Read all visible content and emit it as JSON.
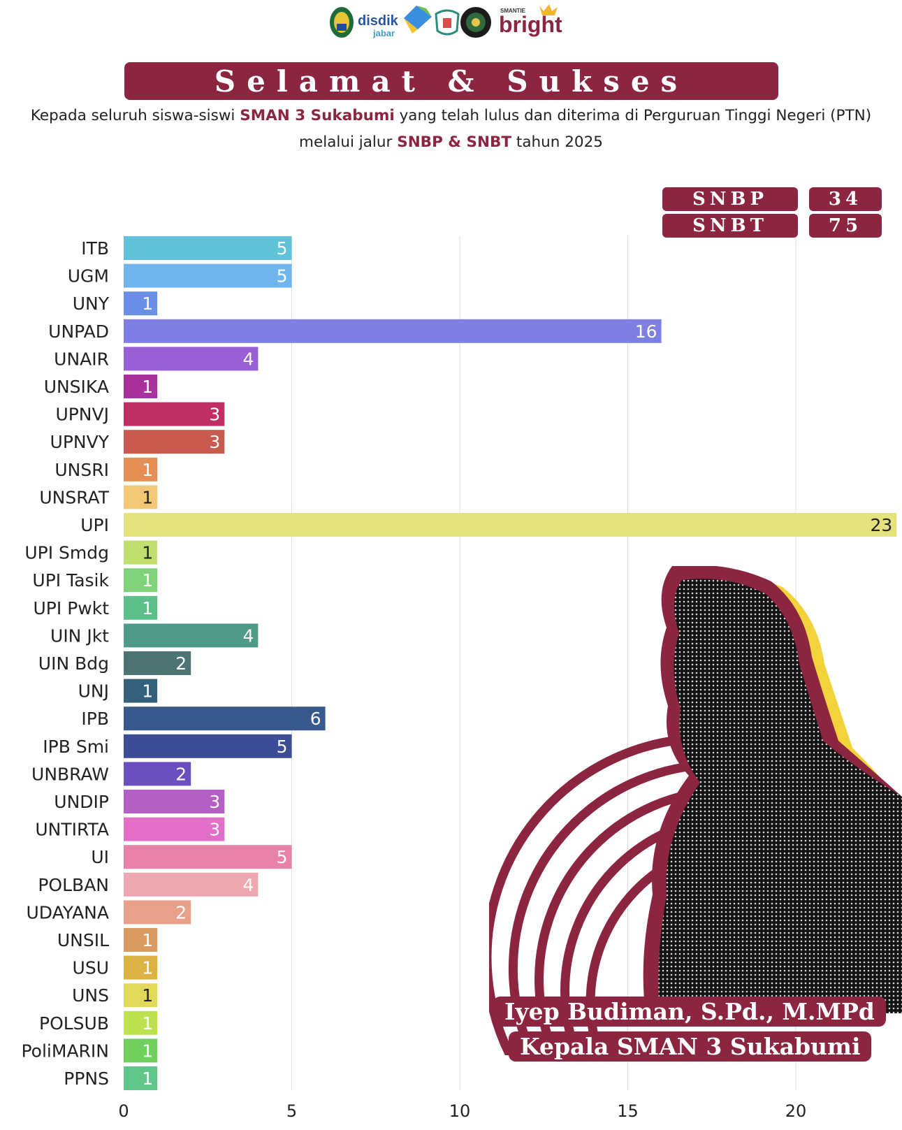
{
  "header": {
    "logos": [
      "disdik-jabar-logo",
      "partner-logo",
      "school-logo",
      "police-logo",
      "smantie-bright-logo"
    ],
    "logo_disdik_main": "disdik",
    "logo_disdik_sub": "jabar",
    "logo_bright_top": "SMANTIE",
    "logo_bright_main": "bright",
    "banner_title": "Selamat & Sukses",
    "subtitle_line1_a": "Kepada seluruh siswa-siswi ",
    "subtitle_line1_b": "SMAN 3 Sukabumi",
    "subtitle_line1_c": " yang telah lulus dan diterima di Perguruan Tinggi Negeri (PTN)",
    "subtitle_line2_a": "melalui jalur ",
    "subtitle_line2_b": "SNBP & SNBT",
    "subtitle_line2_c": " tahun 2025"
  },
  "totals": {
    "snbp_label": "SNBP",
    "snbp_value": "34",
    "snbt_label": "SNBT",
    "snbt_value": "75"
  },
  "caption": {
    "name": "Iyep Budiman, S.Pd., M.MPd",
    "role": "Kepala SMAN 3 Sukabumi"
  },
  "colors": {
    "brand": "#8b2540",
    "accent_yellow": "#f2d33c",
    "bars": [
      "#5fc4da",
      "#6fb5ee",
      "#6a8fe6",
      "#7d7fe2",
      "#9a5fd4",
      "#a9309e",
      "#c02e63",
      "#cb5a4e",
      "#e58f55",
      "#f2c877",
      "#e4e17f",
      "#bfe06f",
      "#7fd27a",
      "#5cbf89",
      "#4f9a88",
      "#4d7374",
      "#33617d",
      "#37598d",
      "#3d4c96",
      "#6b4fc0",
      "#b35fc6",
      "#e26fc7",
      "#e882ab",
      "#efa7af",
      "#e8a08a",
      "#d99b5f",
      "#dcb244",
      "#e2d95a",
      "#bde24f",
      "#6fd05c",
      "#61c68a"
    ]
  },
  "chart_data": {
    "type": "bar",
    "orientation": "horizontal",
    "categories": [
      "ITB",
      "UGM",
      "UNY",
      "UNPAD",
      "UNAIR",
      "UNSIKA",
      "UPNVJ",
      "UPNVY",
      "UNSRI",
      "UNSRAT",
      "UPI",
      "UPI Smdg",
      "UPI Tasik",
      "UPI Pwkt",
      "UIN Jkt",
      "UIN Bdg",
      "UNJ",
      "IPB",
      "IPB Smi",
      "UNBRAW",
      "UNDIP",
      "UNTIRTA",
      "UI",
      "POLBAN",
      "UDAYANA",
      "UNSIL",
      "USU",
      "UNS",
      "POLSUB",
      "PoliMARIN",
      "PPNS"
    ],
    "values": [
      5,
      5,
      1,
      16,
      4,
      1,
      3,
      3,
      1,
      1,
      23,
      1,
      1,
      1,
      4,
      2,
      1,
      6,
      5,
      2,
      3,
      3,
      5,
      4,
      2,
      1,
      1,
      1,
      1,
      1,
      1
    ],
    "xlim": [
      0,
      23
    ],
    "xticks": [
      0,
      5,
      10,
      15,
      20
    ],
    "grid": "vertical",
    "data_labels": "inside-end",
    "title": "",
    "xlabel": "",
    "ylabel": ""
  }
}
